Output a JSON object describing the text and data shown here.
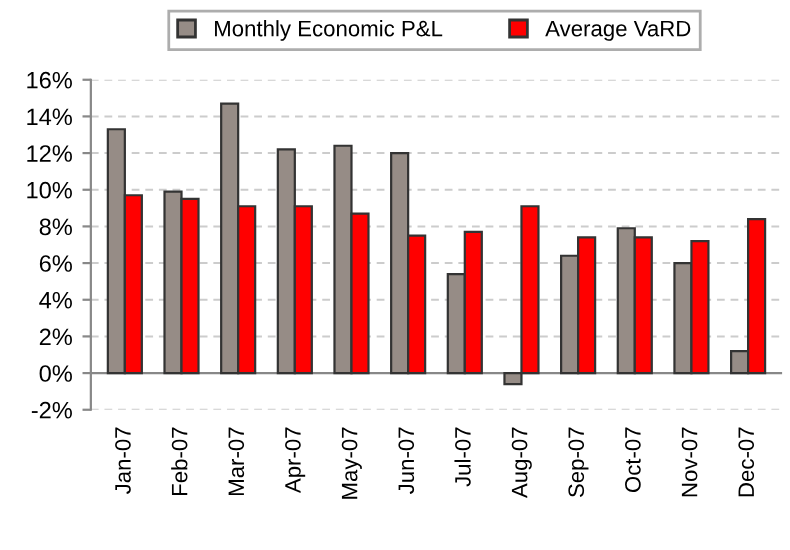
{
  "chart_data": {
    "type": "bar",
    "categories": [
      "Jan-07",
      "Feb-07",
      "Mar-07",
      "Apr-07",
      "May-07",
      "Jun-07",
      "Jul-07",
      "Aug-07",
      "Sep-07",
      "Oct-07",
      "Nov-07",
      "Dec-07"
    ],
    "series": [
      {
        "name": "Monthly Economic P&L",
        "color": "#968c86",
        "values": [
          13.3,
          9.9,
          14.7,
          12.2,
          12.4,
          12.0,
          5.4,
          -0.6,
          6.4,
          7.9,
          6.0,
          1.2
        ]
      },
      {
        "name": "Average VaRD",
        "color": "#ff0000",
        "values": [
          9.7,
          9.5,
          9.1,
          9.1,
          8.7,
          7.5,
          7.7,
          9.1,
          7.4,
          7.4,
          7.2,
          8.4
        ]
      }
    ],
    "ylim": [
      -2,
      16
    ],
    "yticks": [
      {
        "value": -2,
        "label": "-2%"
      },
      {
        "value": 0,
        "label": "0%"
      },
      {
        "value": 2,
        "label": "2%"
      },
      {
        "value": 4,
        "label": "4%"
      },
      {
        "value": 6,
        "label": "6%"
      },
      {
        "value": 8,
        "label": "8%"
      },
      {
        "value": 10,
        "label": "10%"
      },
      {
        "value": 12,
        "label": "12%"
      },
      {
        "value": 14,
        "label": "14%"
      },
      {
        "value": 16,
        "label": "16%"
      }
    ],
    "grid": "y",
    "legend": "top"
  }
}
